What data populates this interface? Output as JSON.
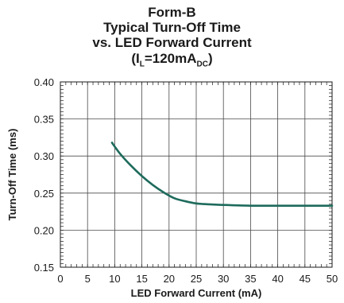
{
  "chart_data": {
    "type": "line",
    "title_lines": [
      "Form-B",
      "Typical Turn-Off Time",
      "vs. LED Forward Current"
    ],
    "condition": {
      "prefix": "(I",
      "sub1": "L",
      "mid": "=120mA",
      "sub2": "DC",
      "suffix": ")"
    },
    "xlabel": "LED Forward Current (mA)",
    "ylabel": "Turn-Off Time (ms)",
    "xlim": [
      0,
      50
    ],
    "ylim": [
      0.15,
      0.4
    ],
    "xticks": [
      0,
      5,
      10,
      15,
      20,
      25,
      30,
      35,
      40,
      45,
      50
    ],
    "yticks": [
      0.15,
      0.2,
      0.25,
      0.3,
      0.35,
      0.4
    ],
    "ytick_labels": [
      "0.15",
      "0.20",
      "0.25",
      "0.30",
      "0.35",
      "0.40"
    ],
    "grid": true,
    "series": [
      {
        "color": "#1e6b5c",
        "x": [
          9.5,
          11,
          13,
          15,
          17,
          19,
          21,
          23,
          25,
          27,
          30,
          35,
          40,
          45,
          50
        ],
        "y": [
          0.318,
          0.303,
          0.287,
          0.273,
          0.261,
          0.251,
          0.243,
          0.239,
          0.236,
          0.235,
          0.234,
          0.233,
          0.233,
          0.233,
          0.233
        ]
      }
    ]
  }
}
